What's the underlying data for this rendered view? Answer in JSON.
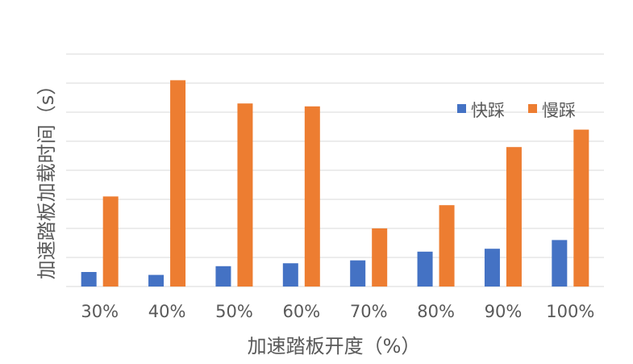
{
  "chart_data": {
    "type": "bar",
    "title": "",
    "xlabel": "加速踏板开度（%）",
    "ylabel": "加速踏板加载时间（s）",
    "categories": [
      "30%",
      "40%",
      "50%",
      "60%",
      "70%",
      "80%",
      "90%",
      "100%"
    ],
    "series": [
      {
        "name": "快踩",
        "color": "#4472C4",
        "values": [
          0.5,
          0.4,
          0.7,
          0.8,
          0.9,
          1.2,
          1.3,
          1.6
        ]
      },
      {
        "name": "慢踩",
        "color": "#ED7D31",
        "values": [
          3.1,
          7.1,
          6.3,
          6.2,
          2.0,
          2.8,
          4.8,
          5.4
        ]
      }
    ],
    "ylim": [
      0,
      8
    ],
    "y_ticks_shown": false,
    "grid": true,
    "legend": "top-right"
  }
}
